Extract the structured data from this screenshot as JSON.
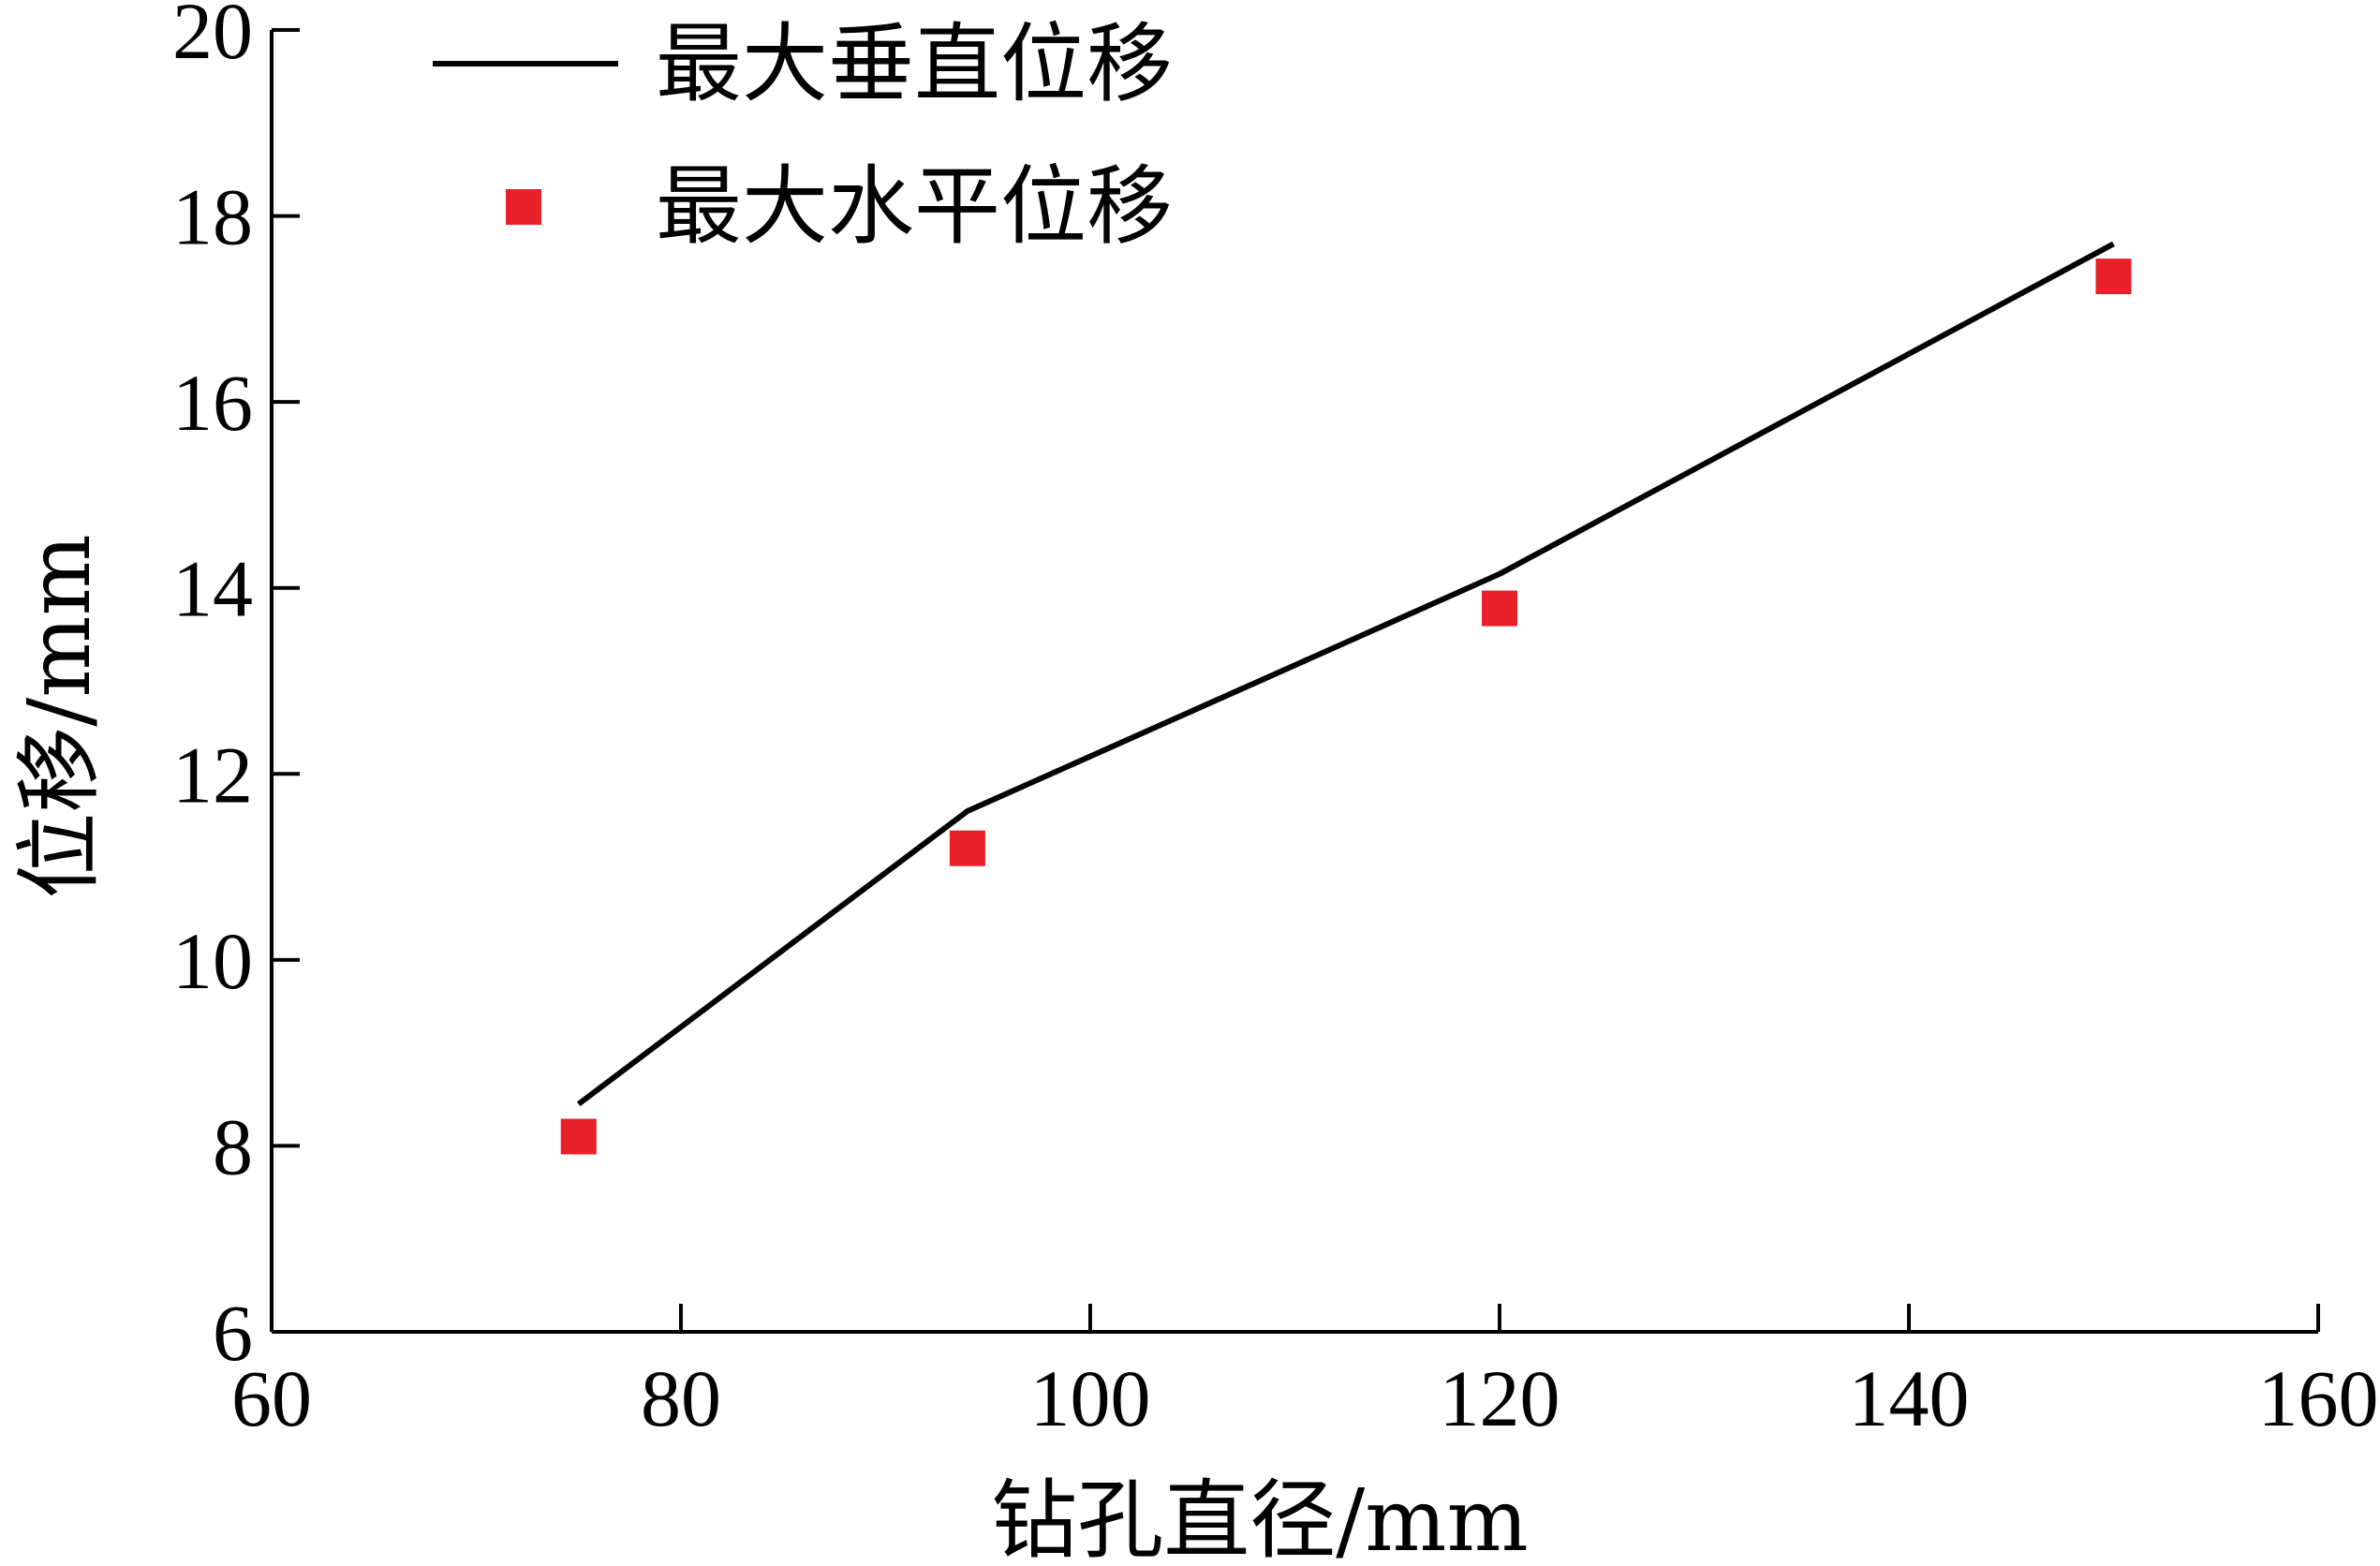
{
  "chart_data": {
    "type": "line",
    "title": "",
    "xlabel": "钻孔直径/mm",
    "ylabel": "位移/mm",
    "xlim": [
      60,
      160
    ],
    "ylim": [
      6,
      20
    ],
    "xticks": [
      60,
      80,
      100,
      120,
      140,
      160
    ],
    "yticks": [
      6,
      8,
      10,
      12,
      14,
      16,
      18,
      20
    ],
    "x": [
      75,
      94,
      120,
      150
    ],
    "grid": false,
    "legend": "top-left",
    "series": [
      {
        "name": "最大垂直位移",
        "kind": "line",
        "color": "#000000",
        "values": [
          8.45,
          11.6,
          14.15,
          17.7
        ]
      },
      {
        "name": "最大水平位移",
        "kind": "scatter",
        "marker": "square",
        "color": "#e8202a",
        "values": [
          8.1,
          11.2,
          13.78,
          17.35
        ]
      }
    ]
  }
}
